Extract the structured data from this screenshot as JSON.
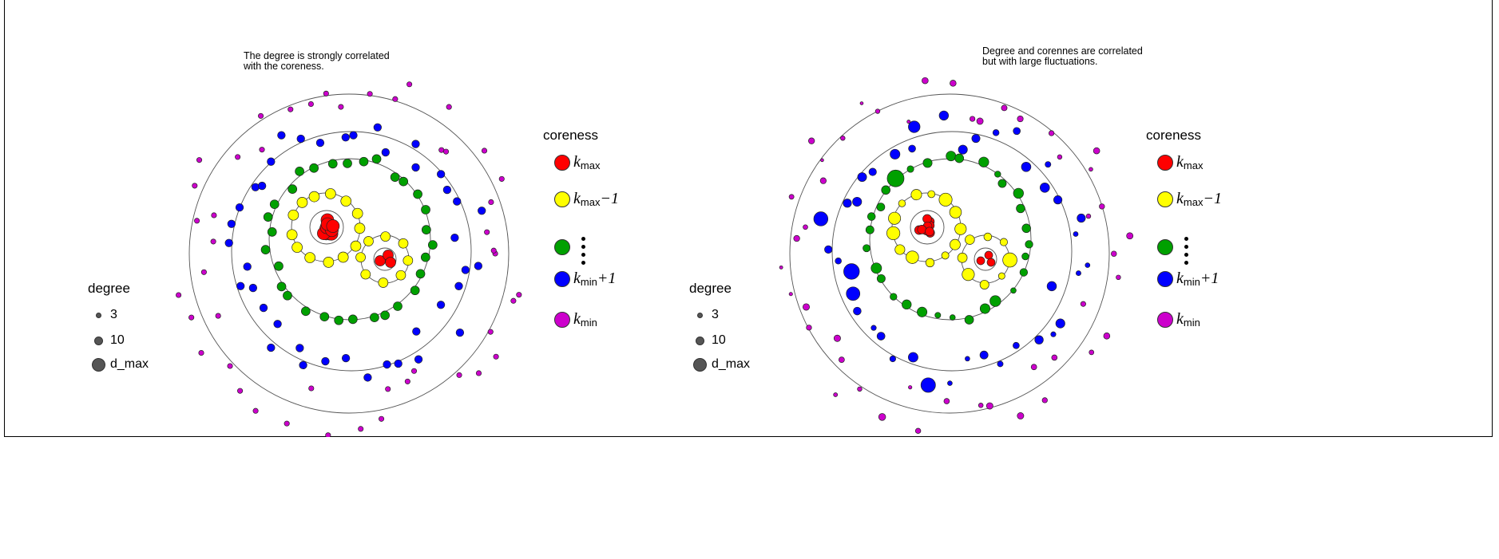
{
  "colors": {
    "kmax": "#ff0000",
    "kmax_minus_1": "#ffff00",
    "middle": "#00a000",
    "kmin_plus_1": "#0000ff",
    "kmin": "#cc00cc",
    "degree_dot": "#555555"
  },
  "panels": [
    {
      "note_line1": "The degree is strongly correlated",
      "note_line2": "with the coreness.",
      "variable_size": false
    },
    {
      "note_line1": "Degree and corennes are correlated",
      "note_line2": "but with large fluctuations.",
      "variable_size": true
    }
  ],
  "degree_legend": {
    "title": "degree",
    "items": [
      "3",
      "10",
      "d_max"
    ]
  },
  "coreness_legend": {
    "title": "coreness",
    "k": "k",
    "items": [
      {
        "sub": "max",
        "suffix": ""
      },
      {
        "sub": "max",
        "suffix": "−1"
      },
      {
        "sub": "",
        "suffix": ""
      },
      {
        "sub": "min",
        "suffix": "+1"
      },
      {
        "sub": "min",
        "suffix": ""
      }
    ]
  }
}
